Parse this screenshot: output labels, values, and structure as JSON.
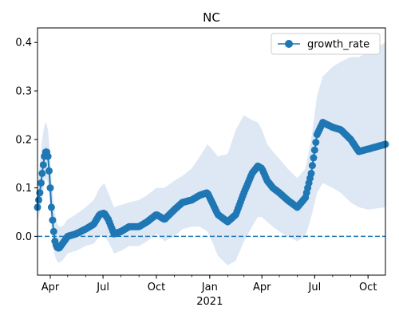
{
  "chart_data": {
    "type": "line",
    "title": "NC",
    "xlabel": "",
    "ylabel": "",
    "x_axis": {
      "type": "date",
      "range": [
        "2020-03-10",
        "2021-10-31"
      ],
      "major_ticks": [
        {
          "date": "2020-04-01",
          "label": "Apr"
        },
        {
          "date": "2020-07-01",
          "label": "Jul"
        },
        {
          "date": "2020-10-01",
          "label": "Oct"
        },
        {
          "date": "2021-01-01",
          "label": "Jan"
        },
        {
          "date": "2021-04-01",
          "label": "Apr"
        },
        {
          "date": "2021-07-01",
          "label": "Jul"
        },
        {
          "date": "2021-10-01",
          "label": "Oct"
        }
      ],
      "year_label": "2021"
    },
    "y_axis": {
      "range": [
        -0.08,
        0.43
      ],
      "ticks": [
        0.0,
        0.1,
        0.2,
        0.3,
        0.4
      ],
      "tick_labels": [
        "0.0",
        "0.1",
        "0.2",
        "0.3",
        "0.4"
      ]
    },
    "series": [
      {
        "name": "growth_rate",
        "color": "#1f77b4",
        "marker": "circle",
        "x": [
          "2020-03-10",
          "2020-03-14",
          "2020-03-18",
          "2020-03-22",
          "2020-03-25",
          "2020-03-28",
          "2020-03-31",
          "2020-04-03",
          "2020-04-06",
          "2020-04-09",
          "2020-04-12",
          "2020-04-16",
          "2020-04-22",
          "2020-05-01",
          "2020-05-15",
          "2020-06-01",
          "2020-06-15",
          "2020-06-25",
          "2020-07-03",
          "2020-07-10",
          "2020-07-20",
          "2020-08-01",
          "2020-08-15",
          "2020-09-01",
          "2020-09-15",
          "2020-10-01",
          "2020-10-15",
          "2020-11-01",
          "2020-11-15",
          "2020-12-01",
          "2020-12-15",
          "2020-12-28",
          "2021-01-05",
          "2021-01-15",
          "2021-02-01",
          "2021-02-15",
          "2021-03-01",
          "2021-03-15",
          "2021-03-25",
          "2021-04-01",
          "2021-04-10",
          "2021-04-20",
          "2021-05-01",
          "2021-05-15",
          "2021-06-01",
          "2021-06-15",
          "2021-06-25",
          "2021-07-05",
          "2021-07-15",
          "2021-08-01",
          "2021-08-15",
          "2021-09-01",
          "2021-09-15",
          "2021-10-01",
          "2021-10-31"
        ],
        "y": [
          0.06,
          0.09,
          0.13,
          0.165,
          0.178,
          0.165,
          0.12,
          0.06,
          0.02,
          -0.01,
          -0.022,
          -0.025,
          -0.015,
          0.0,
          0.005,
          0.015,
          0.025,
          0.045,
          0.048,
          0.035,
          0.005,
          0.01,
          0.02,
          0.02,
          0.03,
          0.045,
          0.035,
          0.055,
          0.07,
          0.075,
          0.085,
          0.09,
          0.07,
          0.045,
          0.03,
          0.045,
          0.09,
          0.13,
          0.145,
          0.14,
          0.115,
          0.1,
          0.09,
          0.075,
          0.06,
          0.08,
          0.13,
          0.21,
          0.235,
          0.225,
          0.22,
          0.2,
          0.175,
          0.18,
          0.19
        ]
      }
    ],
    "confidence_band": {
      "color": "#dde8f4",
      "upper": [
        0.1,
        0.15,
        0.2,
        0.23,
        0.235,
        0.22,
        0.18,
        0.12,
        0.08,
        0.05,
        0.03,
        0.02,
        0.02,
        0.035,
        0.045,
        0.06,
        0.075,
        0.1,
        0.11,
        0.09,
        0.06,
        0.065,
        0.07,
        0.075,
        0.085,
        0.1,
        0.1,
        0.115,
        0.125,
        0.14,
        0.165,
        0.19,
        0.18,
        0.165,
        0.17,
        0.22,
        0.25,
        0.24,
        0.235,
        0.22,
        0.19,
        0.175,
        0.16,
        0.14,
        0.12,
        0.14,
        0.2,
        0.29,
        0.33,
        0.35,
        0.36,
        0.37,
        0.37,
        0.38,
        0.4
      ],
      "lower": [
        0.03,
        0.05,
        0.08,
        0.11,
        0.12,
        0.11,
        0.07,
        0.02,
        -0.02,
        -0.04,
        -0.05,
        -0.055,
        -0.05,
        -0.035,
        -0.03,
        -0.02,
        -0.015,
        0.0,
        0.0,
        -0.01,
        -0.035,
        -0.03,
        -0.02,
        -0.02,
        -0.01,
        0.005,
        -0.01,
        0.0,
        0.015,
        0.02,
        0.02,
        0.01,
        -0.01,
        -0.04,
        -0.06,
        -0.05,
        -0.01,
        0.02,
        0.04,
        0.04,
        0.03,
        0.02,
        0.01,
        0.0,
        -0.01,
        0.0,
        0.04,
        0.09,
        0.11,
        0.1,
        0.09,
        0.07,
        0.06,
        0.055,
        0.06
      ]
    },
    "reference_line": {
      "y": 0.0,
      "style": "dashed",
      "color": "#1f77b4"
    },
    "legend": {
      "position": "top-right",
      "entries": [
        "growth_rate"
      ]
    },
    "grid": false
  }
}
